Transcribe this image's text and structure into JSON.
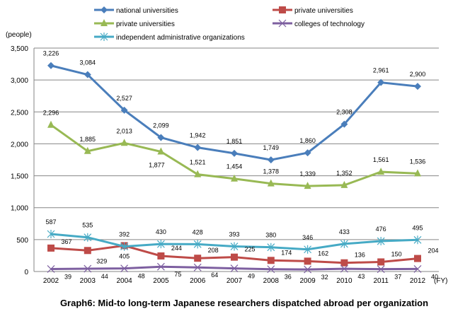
{
  "chart_data": {
    "type": "line",
    "title": "Graph6: Mid-to long-term Japanese researchers dispatched abroad per organization",
    "ylabel": "(people)",
    "xlabel": "(FY)",
    "ylim": [
      0,
      3500
    ],
    "yticks": [
      "0",
      "500",
      "1,000",
      "1,500",
      "2,000",
      "2,500",
      "3,000",
      "3,500"
    ],
    "grid": true,
    "legend_position": "top",
    "categories": [
      "2002",
      "2003",
      "2004",
      "2005",
      "2006",
      "2007",
      "2008",
      "2009",
      "2010",
      "2011",
      "2012"
    ],
    "series": [
      {
        "name": "national universities",
        "color": "#4a7ebb",
        "marker": "diamond",
        "values": [
          3226,
          3084,
          2527,
          2099,
          1942,
          1851,
          1749,
          1860,
          2308,
          2961,
          2900
        ]
      },
      {
        "name": "private universities",
        "color": "#be4b48",
        "marker": "square",
        "values": [
          367,
          329,
          405,
          244,
          208,
          225,
          174,
          162,
          136,
          150,
          204
        ]
      },
      {
        "name": "private universities",
        "color": "#98b954",
        "marker": "triangle",
        "values": [
          2296,
          1885,
          2013,
          1877,
          1521,
          1454,
          1378,
          1339,
          1352,
          1561,
          1536
        ]
      },
      {
        "name": "colleges of technology",
        "color": "#7d5fa0",
        "marker": "x",
        "values": [
          39,
          44,
          48,
          75,
          64,
          49,
          36,
          32,
          43,
          37,
          40
        ]
      },
      {
        "name": "independent administrative organizations",
        "color": "#46aac5",
        "marker": "star",
        "values": [
          587,
          535,
          392,
          430,
          428,
          393,
          380,
          346,
          433,
          476,
          495
        ]
      }
    ]
  }
}
